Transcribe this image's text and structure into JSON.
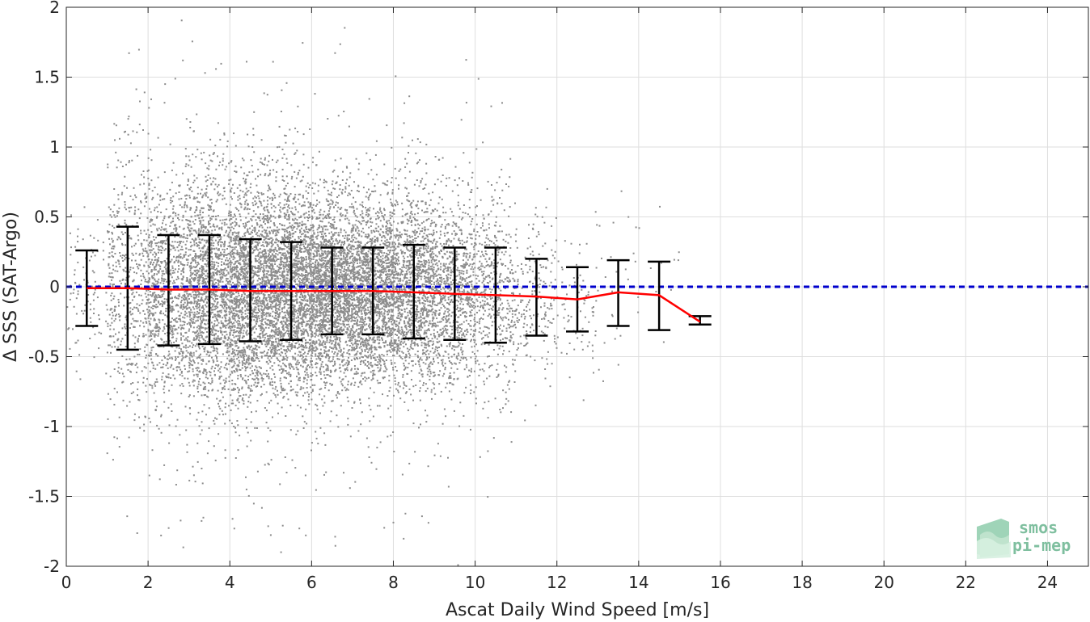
{
  "chart_data": {
    "type": "scatter",
    "xlabel": "Ascat Daily Wind Speed [m/s]",
    "ylabel": "Δ SSS (SAT-Argo)",
    "xlim": [
      0,
      25
    ],
    "ylim": [
      -2,
      2
    ],
    "x_ticks": [
      0,
      2,
      4,
      6,
      8,
      10,
      12,
      14,
      16,
      18,
      20,
      22,
      24
    ],
    "y_ticks": [
      -2,
      -1.5,
      -1,
      -0.5,
      0,
      0.5,
      1,
      1.5,
      2
    ],
    "x_tick_labels": [
      "0",
      "2",
      "4",
      "6",
      "8",
      "10",
      "12",
      "14",
      "16",
      "18",
      "20",
      "22",
      "24"
    ],
    "y_tick_labels": [
      "-2",
      "-1.5",
      "-1",
      "-0.5",
      "0",
      "0.5",
      "1",
      "1.5",
      "2"
    ],
    "grid": true,
    "scatter_color": "#8c8c8c",
    "mean_line_color": "#ff0000",
    "zero_line_color": "#0000cc",
    "errorbar_color": "#000000",
    "zero_line_value": 0,
    "bins": [
      {
        "x": 0.5,
        "mean": -0.01,
        "upper": 0.26,
        "lower": -0.28
      },
      {
        "x": 1.5,
        "mean": -0.01,
        "upper": 0.43,
        "lower": -0.45
      },
      {
        "x": 2.5,
        "mean": -0.02,
        "upper": 0.37,
        "lower": -0.42
      },
      {
        "x": 3.5,
        "mean": -0.02,
        "upper": 0.37,
        "lower": -0.41
      },
      {
        "x": 4.5,
        "mean": -0.03,
        "upper": 0.34,
        "lower": -0.39
      },
      {
        "x": 5.5,
        "mean": -0.03,
        "upper": 0.32,
        "lower": -0.38
      },
      {
        "x": 6.5,
        "mean": -0.03,
        "upper": 0.28,
        "lower": -0.34
      },
      {
        "x": 7.5,
        "mean": -0.03,
        "upper": 0.28,
        "lower": -0.34
      },
      {
        "x": 8.5,
        "mean": -0.04,
        "upper": 0.3,
        "lower": -0.37
      },
      {
        "x": 9.5,
        "mean": -0.05,
        "upper": 0.28,
        "lower": -0.38
      },
      {
        "x": 10.5,
        "mean": -0.06,
        "upper": 0.28,
        "lower": -0.4
      },
      {
        "x": 11.5,
        "mean": -0.07,
        "upper": 0.2,
        "lower": -0.35
      },
      {
        "x": 12.5,
        "mean": -0.09,
        "upper": 0.14,
        "lower": -0.32
      },
      {
        "x": 13.5,
        "mean": -0.04,
        "upper": 0.19,
        "lower": -0.28
      },
      {
        "x": 14.5,
        "mean": -0.06,
        "upper": 0.18,
        "lower": -0.31
      },
      {
        "x": 15.5,
        "mean": -0.25,
        "upper": -0.21,
        "lower": -0.27
      }
    ],
    "scatter_spread": {
      "mean_sd_by_bin": [
        {
          "x": 0.5,
          "sd": 0.27,
          "count_weight": 0.05
        },
        {
          "x": 1.5,
          "sd": 0.44,
          "count_weight": 0.25
        },
        {
          "x": 2.5,
          "sd": 0.4,
          "count_weight": 0.5
        },
        {
          "x": 3.5,
          "sd": 0.39,
          "count_weight": 0.75
        },
        {
          "x": 4.5,
          "sd": 0.37,
          "count_weight": 0.95
        },
        {
          "x": 5.5,
          "sd": 0.35,
          "count_weight": 1.0
        },
        {
          "x": 6.5,
          "sd": 0.31,
          "count_weight": 1.0
        },
        {
          "x": 7.5,
          "sd": 0.31,
          "count_weight": 0.9
        },
        {
          "x": 8.5,
          "sd": 0.33,
          "count_weight": 0.7
        },
        {
          "x": 9.5,
          "sd": 0.33,
          "count_weight": 0.45
        },
        {
          "x": 10.5,
          "sd": 0.34,
          "count_weight": 0.25
        },
        {
          "x": 11.5,
          "sd": 0.28,
          "count_weight": 0.1
        },
        {
          "x": 12.5,
          "sd": 0.23,
          "count_weight": 0.04
        },
        {
          "x": 13.5,
          "sd": 0.24,
          "count_weight": 0.015
        },
        {
          "x": 14.5,
          "sd": 0.25,
          "count_weight": 0.005
        }
      ]
    }
  },
  "logo": {
    "line1": "smos",
    "line2": "pi-mep",
    "color": "#7fbf9f"
  }
}
